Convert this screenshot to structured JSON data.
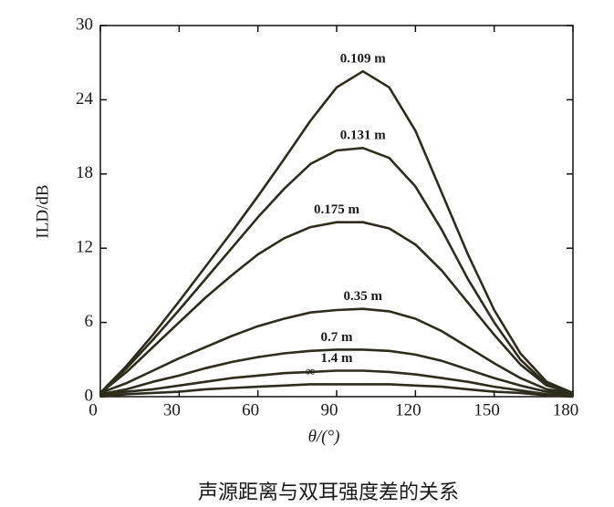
{
  "chart_data": {
    "type": "line",
    "xlabel": "θ/(°)",
    "ylabel": "ILD/dB",
    "caption": "声源距离与双耳强度差的关系",
    "x": [
      0,
      10,
      20,
      30,
      40,
      50,
      60,
      70,
      80,
      90,
      100,
      110,
      120,
      130,
      140,
      150,
      160,
      170,
      180
    ],
    "xlim": [
      0,
      180
    ],
    "xticks": [
      0,
      30,
      60,
      90,
      120,
      150,
      180
    ],
    "ylim": [
      0,
      30
    ],
    "yticks": [
      0,
      6,
      12,
      18,
      24,
      30
    ],
    "series": [
      {
        "name": "0.109 m",
        "color": "#2e2c1c",
        "values": [
          0.3,
          2.5,
          5,
          7.7,
          10.5,
          13.3,
          16.2,
          19.2,
          22.3,
          25,
          26.3,
          25,
          21.5,
          16.5,
          11.5,
          7,
          3.5,
          1.2,
          0.3
        ]
      },
      {
        "name": "0.131 m",
        "color": "#2e2c1c",
        "values": [
          0.3,
          2.3,
          4.6,
          7,
          9.5,
          12,
          14.5,
          16.8,
          18.8,
          19.9,
          20.1,
          19.3,
          17,
          13.5,
          9.5,
          6,
          3,
          1,
          0.3
        ]
      },
      {
        "name": "0.175 m",
        "color": "#2e2c1c",
        "values": [
          0.3,
          2,
          4,
          6,
          8,
          9.8,
          11.5,
          12.8,
          13.7,
          14.1,
          14.1,
          13.6,
          12.3,
          10.2,
          7.6,
          5,
          2.6,
          0.9,
          0.3
        ]
      },
      {
        "name": "0.35 m",
        "color": "#2e2c1c",
        "values": [
          0.3,
          1.1,
          2.1,
          3.1,
          4,
          4.9,
          5.7,
          6.3,
          6.8,
          7,
          7.1,
          6.9,
          6.3,
          5.3,
          4,
          2.7,
          1.5,
          0.6,
          0.3
        ]
      },
      {
        "name": "0.7 m",
        "color": "#2e2c1c",
        "values": [
          0.2,
          0.6,
          1.2,
          1.7,
          2.3,
          2.8,
          3.2,
          3.5,
          3.7,
          3.8,
          3.8,
          3.7,
          3.4,
          2.9,
          2.2,
          1.5,
          0.9,
          0.4,
          0.2
        ]
      },
      {
        "name": "1.4 m",
        "color": "#2e2c1c",
        "values": [
          0.1,
          0.4,
          0.6,
          0.9,
          1.2,
          1.5,
          1.7,
          1.9,
          2.0,
          2.1,
          2.1,
          2.0,
          1.8,
          1.5,
          1.2,
          0.8,
          0.5,
          0.2,
          0.1
        ]
      },
      {
        "name": "∞",
        "color": "#2e2c1c",
        "values": [
          0,
          0.2,
          0.3,
          0.4,
          0.6,
          0.7,
          0.8,
          0.9,
          1.0,
          1.0,
          1.0,
          1.0,
          0.9,
          0.8,
          0.6,
          0.4,
          0.3,
          0.1,
          0
        ]
      }
    ]
  }
}
